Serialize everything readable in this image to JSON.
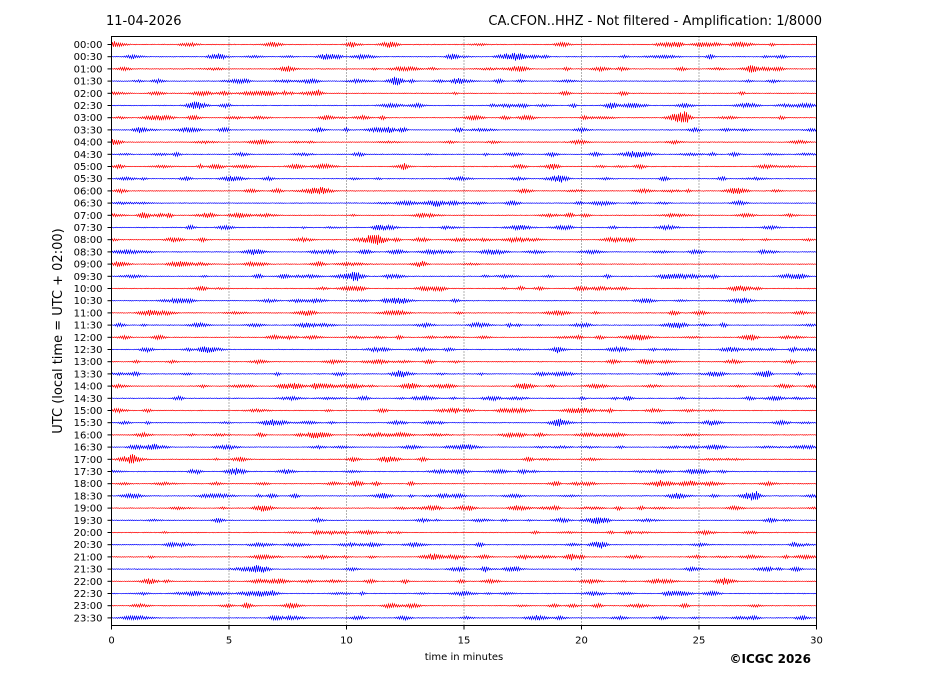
{
  "header": {
    "date": "11-04-2026",
    "title": "CA.CFON..HHZ - Not filtered - Amplification: 1/8000"
  },
  "footer": {
    "copyright": "©ICGC 2026"
  },
  "chart_data": {
    "type": "line",
    "title": "CA.CFON..HHZ - Not filtered - Amplification: 1/8000",
    "xlabel": "time in minutes",
    "ylabel": "UTC (local time = UTC + 02:00)",
    "xlim": [
      0,
      30
    ],
    "x_ticks": [
      "0",
      "5",
      "10",
      "15",
      "20",
      "25",
      "30"
    ],
    "vertical_grid": "dotted",
    "trace_colors": [
      "#ff0000",
      "#0000ff"
    ],
    "rows": [
      "00:00",
      "00:30",
      "01:00",
      "01:30",
      "02:00",
      "02:30",
      "03:00",
      "03:30",
      "04:00",
      "04:30",
      "05:00",
      "05:30",
      "06:00",
      "06:30",
      "07:00",
      "07:30",
      "08:00",
      "08:30",
      "09:00",
      "09:30",
      "10:00",
      "10:30",
      "11:00",
      "11:30",
      "12:00",
      "12:30",
      "13:00",
      "13:30",
      "14:00",
      "14:30",
      "15:00",
      "15:30",
      "16:00",
      "16:30",
      "17:00",
      "17:30",
      "18:00",
      "18:30",
      "19:00",
      "19:30",
      "20:00",
      "20:30",
      "21:00",
      "21:30",
      "22:00",
      "22:30",
      "23:00",
      "23:30"
    ]
  }
}
